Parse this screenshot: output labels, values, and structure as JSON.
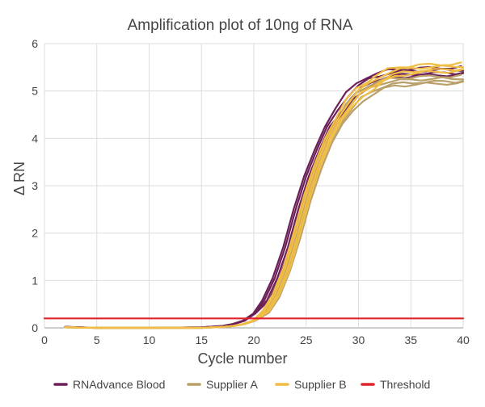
{
  "chart_data": {
    "type": "line",
    "title": "Amplification plot of 10ng of RNA",
    "xlabel": "Cycle number",
    "ylabel": "Δ RN",
    "xlim": [
      0,
      40
    ],
    "ylim": [
      0,
      6
    ],
    "xticks": [
      "0",
      "5",
      "10",
      "15",
      "20",
      "25",
      "30",
      "35",
      "40"
    ],
    "yticks": [
      "0",
      "1",
      "2",
      "3",
      "4",
      "5",
      "6"
    ],
    "grid": true,
    "legend_position": "bottom",
    "series": [
      {
        "name": "RNAdvance Blood",
        "color": "#6b2158",
        "replicates": 4,
        "x": [
          2,
          5,
          10,
          15,
          17,
          18,
          19,
          20,
          21,
          22,
          23,
          24,
          25,
          26,
          27,
          28,
          29,
          30,
          31,
          32,
          33,
          34,
          35,
          36,
          37,
          38,
          39,
          40
        ],
        "y": [
          0.02,
          0.0,
          0.0,
          0.01,
          0.04,
          0.08,
          0.15,
          0.3,
          0.58,
          1.05,
          1.7,
          2.5,
          3.2,
          3.75,
          4.25,
          4.6,
          4.9,
          5.1,
          5.25,
          5.33,
          5.38,
          5.4,
          5.42,
          5.43,
          5.43,
          5.44,
          5.44,
          5.45
        ]
      },
      {
        "name": "Supplier A",
        "color": "#b9a06a",
        "replicates": 4,
        "x": [
          2,
          5,
          10,
          15,
          17,
          18,
          19,
          20,
          21,
          22,
          23,
          24,
          25,
          26,
          27,
          28,
          29,
          30,
          31,
          32,
          33,
          34,
          35,
          36,
          37,
          38,
          39,
          40
        ],
        "y": [
          0.01,
          0.0,
          0.0,
          0.0,
          0.02,
          0.04,
          0.08,
          0.15,
          0.32,
          0.65,
          1.2,
          1.9,
          2.7,
          3.35,
          3.9,
          4.3,
          4.65,
          4.9,
          5.05,
          5.15,
          5.2,
          5.22,
          5.24,
          5.25,
          5.25,
          5.26,
          5.26,
          5.27
        ]
      },
      {
        "name": "Supplier B",
        "color": "#f0bd45",
        "replicates": 4,
        "x": [
          2,
          5,
          10,
          15,
          17,
          18,
          19,
          20,
          21,
          22,
          23,
          24,
          25,
          26,
          27,
          28,
          29,
          30,
          31,
          32,
          33,
          34,
          35,
          36,
          37,
          38,
          39,
          40
        ],
        "y": [
          0.01,
          0.0,
          0.0,
          0.0,
          0.02,
          0.04,
          0.08,
          0.16,
          0.35,
          0.7,
          1.25,
          2.0,
          2.8,
          3.45,
          4.0,
          4.4,
          4.75,
          5.0,
          5.15,
          5.3,
          5.4,
          5.45,
          5.48,
          5.5,
          5.5,
          5.51,
          5.52,
          5.53
        ]
      },
      {
        "name": "Threshold",
        "color": "#e0222c",
        "x": [
          0,
          40
        ],
        "y": [
          0.2,
          0.2
        ]
      }
    ]
  }
}
